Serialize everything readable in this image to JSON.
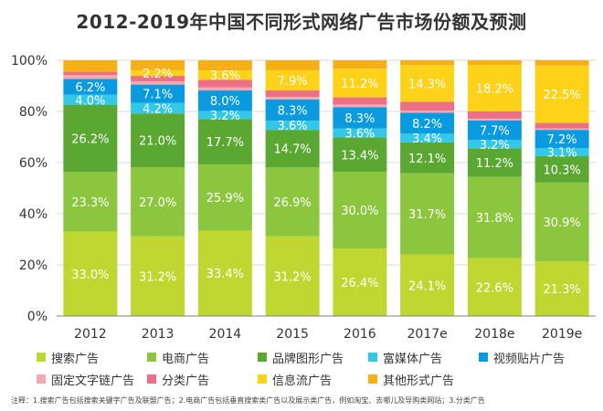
{
  "chart_data": {
    "type": "bar",
    "stacked": true,
    "title": "2012-2019年中国不同形式网络广告市场份额及预测",
    "categories": [
      "2012",
      "2013",
      "2014",
      "2015",
      "2016",
      "2017e",
      "2018e",
      "2019e"
    ],
    "ylim": [
      0,
      100
    ],
    "yticks": [
      "0%",
      "20%",
      "40%",
      "60%",
      "80%",
      "100%"
    ],
    "grid": true,
    "legend_position": "bottom",
    "series": [
      {
        "name": "搜索广告",
        "color": "#bfd730",
        "values": [
          33.0,
          31.2,
          33.4,
          31.2,
          26.4,
          24.1,
          22.6,
          21.3
        ],
        "labels": [
          "33.0%",
          "31.2%",
          "33.4%",
          "31.2%",
          "26.4%",
          "24.1%",
          "22.6%",
          "21.3%"
        ]
      },
      {
        "name": "电商广告",
        "color": "#8cc63f",
        "values": [
          23.3,
          27.0,
          25.9,
          26.9,
          30.0,
          31.7,
          31.8,
          30.9
        ],
        "labels": [
          "23.3%",
          "27.0%",
          "25.9%",
          "26.9%",
          "30.0%",
          "31.7%",
          "31.8%",
          "30.9%"
        ]
      },
      {
        "name": "品牌图形广告",
        "color": "#5aa832",
        "values": [
          26.2,
          21.0,
          17.7,
          14.7,
          13.4,
          12.1,
          11.2,
          10.3
        ],
        "labels": [
          "26.2%",
          "21.0%",
          "17.7%",
          "14.7%",
          "13.4%",
          "12.1%",
          "11.2%",
          "10.3%"
        ]
      },
      {
        "name": "富媒体广告",
        "color": "#33c8e8",
        "values": [
          4.0,
          4.2,
          3.2,
          3.6,
          3.6,
          3.4,
          3.2,
          3.1
        ],
        "labels": [
          "4.0%",
          "4.2%",
          "3.2%",
          "3.6%",
          "3.6%",
          "3.4%",
          "3.2%",
          "3.1%"
        ]
      },
      {
        "name": "视频贴片广告",
        "color": "#0a9ae0",
        "values": [
          6.2,
          7.1,
          8.0,
          8.3,
          8.3,
          8.2,
          7.7,
          7.2
        ],
        "labels": [
          "6.2%",
          "7.1%",
          "8.0%",
          "8.3%",
          "8.3%",
          "8.2%",
          "7.7%",
          "7.2%"
        ]
      },
      {
        "name": "固定文字链广告",
        "color": "#f4a9b0",
        "values": [
          1.5,
          1.2,
          1.2,
          1.0,
          1.0,
          0.8,
          0.7,
          0.6
        ],
        "labels": [
          "",
          "",
          "",
          "",
          "",
          "",
          "",
          ""
        ]
      },
      {
        "name": "分类广告",
        "color": "#ec6f86",
        "values": [
          1.3,
          2.2,
          3.0,
          2.5,
          2.8,
          3.5,
          2.8,
          2.1
        ],
        "labels": [
          "",
          "",
          "",
          "",
          "",
          "",
          "",
          ""
        ]
      },
      {
        "name": "信息流广告",
        "color": "#ffd21a",
        "values": [
          0.0,
          2.2,
          3.6,
          7.9,
          11.2,
          14.3,
          18.2,
          22.5
        ],
        "labels": [
          "",
          "2.2%",
          "3.6%",
          "7.9%",
          "11.2%",
          "14.3%",
          "18.2%",
          "22.5%"
        ]
      },
      {
        "name": "其他形式广告",
        "color": "#f5b018",
        "values": [
          4.5,
          3.9,
          4.0,
          3.9,
          3.3,
          1.9,
          1.8,
          2.0
        ],
        "labels": [
          "",
          "",
          "",
          "",
          "",
          "",
          "",
          ""
        ]
      }
    ]
  },
  "footnote": "注释：1.搜索广告包括搜索关键字广告及联盟广告；2.电商广告包括垂直搜索类广告以及展示类广告，例如淘宝、去哪儿及导购类网站；3.分类广告"
}
